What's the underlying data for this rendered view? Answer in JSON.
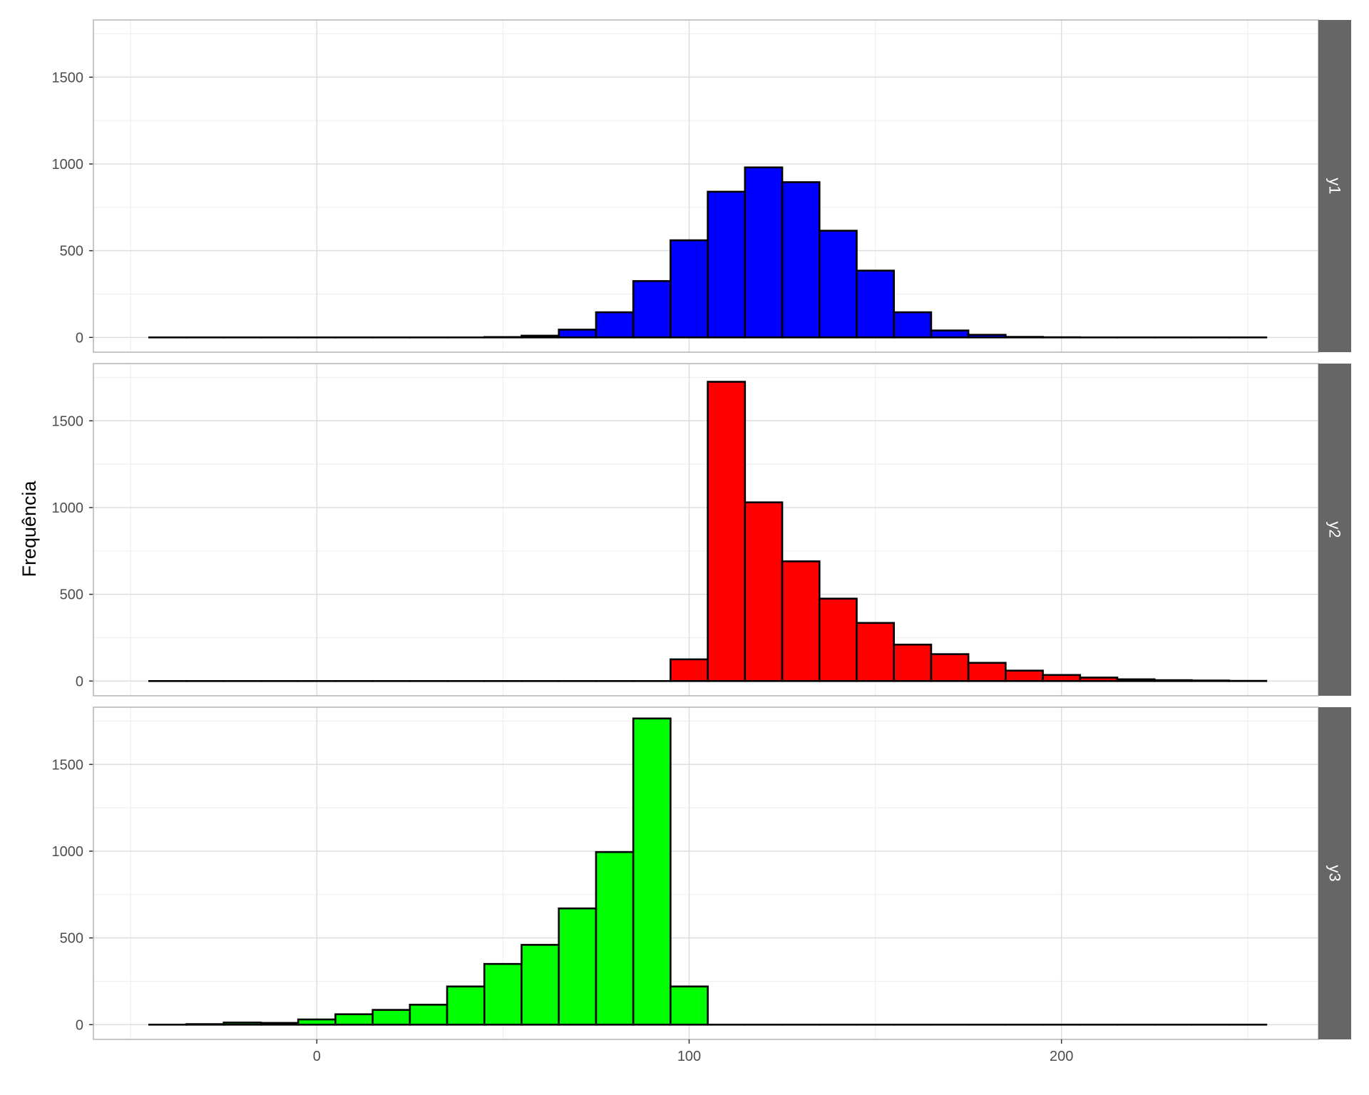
{
  "chart_data": {
    "type": "bar",
    "ylabel": "Frequência",
    "xlabel": "",
    "xlim": [
      -60,
      269
    ],
    "x_ticks": [
      0,
      100,
      200
    ],
    "ylim": [
      -85,
      1830
    ],
    "y_ticks": [
      0,
      500,
      1000,
      1500
    ],
    "bin_edges": [
      -45,
      -35,
      -25,
      -15,
      -5,
      5,
      15,
      25,
      35,
      45,
      55,
      65,
      75,
      85,
      95,
      105,
      115,
      125,
      135,
      145,
      155,
      165,
      175,
      185,
      195,
      205,
      215,
      225,
      235,
      245,
      255
    ],
    "grid": true,
    "facet_strip_position": "right",
    "series": [
      {
        "name": "y1",
        "color": "#0000ff",
        "values": [
          0,
          0,
          0,
          0,
          0,
          0,
          0,
          0,
          0,
          2,
          10,
          45,
          145,
          325,
          560,
          840,
          980,
          895,
          615,
          385,
          145,
          40,
          15,
          3,
          1,
          0,
          0,
          0,
          0,
          0
        ]
      },
      {
        "name": "y2",
        "color": "#ff0000",
        "values": [
          0,
          0,
          0,
          0,
          0,
          0,
          0,
          0,
          0,
          0,
          0,
          0,
          0,
          0,
          125,
          1725,
          1030,
          690,
          475,
          335,
          210,
          155,
          105,
          60,
          35,
          20,
          10,
          5,
          3,
          1
        ]
      },
      {
        "name": "y3",
        "color": "#00ff00",
        "values": [
          0,
          3,
          12,
          10,
          30,
          60,
          85,
          115,
          220,
          350,
          460,
          670,
          995,
          1765,
          220,
          0,
          0,
          0,
          0,
          0,
          0,
          0,
          0,
          0,
          0,
          0,
          0,
          0,
          0,
          0
        ]
      }
    ]
  }
}
